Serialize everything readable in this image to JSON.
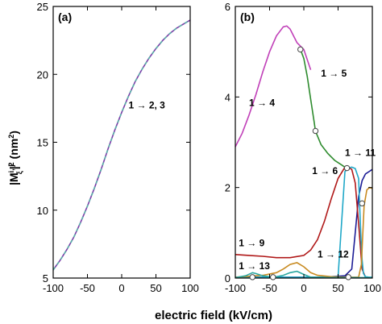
{
  "xlabel": "electric field (kV/cm)",
  "ylabel": "|M",
  "ylabel_sup": "i, j",
  "ylabel_sub": "ξ",
  "ylabel_tail": "|",
  "ylabel_sq": "2",
  "ylabel_unit": " (nm",
  "ylabel_unit_sup": "2",
  "ylabel_unit_close": ")",
  "chart_data": [
    {
      "type": "line",
      "panel_label": "(a)",
      "xlim": [
        -100,
        100
      ],
      "ylim": [
        5,
        25
      ],
      "xticks": [
        -100,
        -50,
        0,
        50,
        100
      ],
      "yticks": [
        5,
        10,
        15,
        20,
        25
      ],
      "series": [
        {
          "name": "1 → 2, 3",
          "color": "#7a3fa8",
          "dash_color": "#5ab0a8",
          "x": [
            -100,
            -90,
            -80,
            -70,
            -60,
            -50,
            -40,
            -30,
            -20,
            -10,
            0,
            10,
            20,
            30,
            40,
            50,
            60,
            70,
            80,
            90,
            100
          ],
          "y": [
            5.6,
            6.3,
            7.1,
            8.0,
            9.1,
            10.3,
            11.6,
            13.0,
            14.5,
            15.9,
            17.2,
            18.4,
            19.5,
            20.4,
            21.2,
            21.9,
            22.5,
            23.0,
            23.4,
            23.7,
            24.0
          ]
        }
      ],
      "annotations": [
        {
          "text": "1 → 2, 3",
          "x": 10,
          "y": 17.5
        }
      ]
    },
    {
      "type": "line",
      "panel_label": "(b)",
      "xlim": [
        -100,
        100
      ],
      "ylim": [
        0,
        6
      ],
      "xticks": [
        -100,
        -50,
        0,
        50,
        100
      ],
      "yticks": [
        0,
        2,
        4,
        6
      ],
      "series": [
        {
          "name": "1 → 4",
          "color": "#c040b8",
          "x": [
            -100,
            -90,
            -80,
            -70,
            -60,
            -50,
            -40,
            -30,
            -25,
            -20,
            -10,
            0,
            10
          ],
          "y": [
            2.9,
            3.2,
            3.6,
            4.05,
            4.55,
            5.0,
            5.35,
            5.55,
            5.57,
            5.5,
            5.2,
            5.05,
            4.6
          ]
        },
        {
          "name": "1 → 5",
          "color": "#2e8b2e",
          "x": [
            -5,
            0,
            5,
            10,
            15,
            17,
            25,
            35,
            45,
            55,
            60
          ],
          "y": [
            5.05,
            4.85,
            4.45,
            3.95,
            3.45,
            3.25,
            2.95,
            2.75,
            2.6,
            2.5,
            2.45
          ]
        },
        {
          "name": "1 → 6",
          "color": "#1c1c96",
          "x": [
            -100,
            -80,
            -60,
            -40,
            -20,
            0,
            20,
            40,
            60,
            70,
            75,
            80,
            85,
            90,
            95,
            100
          ],
          "y": [
            0.02,
            0.02,
            0.02,
            0.02,
            0.02,
            0.02,
            0.02,
            0.03,
            0.05,
            0.2,
            1.0,
            1.8,
            2.15,
            2.3,
            2.35,
            2.4
          ]
        },
        {
          "name": "1 → 9",
          "color": "#b01818",
          "x": [
            -100,
            -80,
            -60,
            -40,
            -20,
            0,
            10,
            20,
            30,
            40,
            50,
            60,
            65,
            70,
            75,
            80,
            85,
            90
          ],
          "y": [
            0.52,
            0.5,
            0.48,
            0.45,
            0.45,
            0.5,
            0.62,
            0.85,
            1.25,
            1.75,
            2.2,
            2.45,
            2.45,
            2.4,
            2.1,
            1.2,
            0.2,
            0.02
          ]
        },
        {
          "name": "1 → 11",
          "color": "#20a8c8",
          "x": [
            -100,
            -60,
            -20,
            20,
            50,
            60,
            65,
            70,
            75,
            80,
            83,
            85,
            87,
            90,
            95,
            100
          ],
          "y": [
            0.02,
            0.02,
            0.02,
            0.02,
            0.03,
            2.35,
            2.43,
            2.45,
            2.42,
            2.2,
            1.0,
            0.4,
            0.1,
            0.03,
            0.02,
            0.02
          ]
        },
        {
          "name": "1 → 12",
          "color": "#c88a20",
          "x": [
            -100,
            -80,
            -60,
            -40,
            -30,
            -20,
            -10,
            0,
            10,
            20,
            40,
            60,
            80,
            84,
            88,
            92,
            96,
            100
          ],
          "y": [
            0.02,
            0.04,
            0.06,
            0.12,
            0.2,
            0.3,
            0.34,
            0.25,
            0.12,
            0.06,
            0.03,
            0.02,
            0.02,
            0.3,
            1.6,
            1.95,
            2.0,
            1.98
          ]
        },
        {
          "name": "1 → 13",
          "color": "#2aa7a0",
          "x": [
            -100,
            -85,
            -75,
            -70,
            -60,
            -50,
            -40,
            -30,
            -20,
            -10,
            0,
            10,
            30,
            60,
            100
          ],
          "y": [
            0.01,
            0.05,
            0.12,
            0.1,
            0.05,
            0.03,
            0.03,
            0.06,
            0.12,
            0.15,
            0.08,
            0.02,
            0.01,
            0.01,
            0.01
          ]
        }
      ],
      "markers": [
        {
          "x": -5,
          "y": 5.05
        },
        {
          "x": 17,
          "y": 3.25
        },
        {
          "x": 63,
          "y": 2.43
        },
        {
          "x": 85,
          "y": 1.65
        },
        {
          "x": -75,
          "y": 0.02
        },
        {
          "x": -45,
          "y": 0.02
        },
        {
          "x": 65,
          "y": 0.02
        }
      ],
      "annotations": [
        {
          "text": "1 → 5",
          "x": 25,
          "y": 4.45
        },
        {
          "text": "1 → 4",
          "x": -80,
          "y": 3.8
        },
        {
          "text": "1 → 11",
          "x": 60,
          "y": 2.7
        },
        {
          "text": "1 → 6",
          "x": 12,
          "y": 2.3
        },
        {
          "text": "1 → 9",
          "x": -95,
          "y": 0.7
        },
        {
          "text": "1 → 12",
          "x": 20,
          "y": 0.45
        },
        {
          "text": "1 → 13",
          "x": -95,
          "y": 0.2
        }
      ]
    }
  ]
}
